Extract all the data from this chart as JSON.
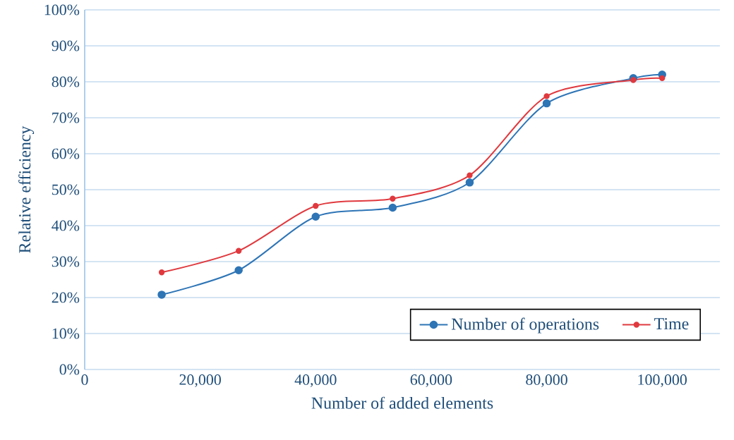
{
  "chart_data": {
    "type": "line",
    "xlabel": "Number of added elements",
    "ylabel": "Relative efficiency",
    "x": [
      13333,
      26667,
      40000,
      53333,
      66667,
      80000,
      95000,
      100000
    ],
    "series": [
      {
        "name": "Number of operations",
        "color": "#2e75b6",
        "values": [
          20.8,
          27.6,
          42.5,
          45,
          52,
          74,
          81,
          82
        ]
      },
      {
        "name": "Time",
        "color": "#e0393e",
        "values": [
          27,
          33,
          45.5,
          47.5,
          54,
          76,
          80.5,
          81
        ]
      }
    ],
    "xlim": [
      0,
      110000
    ],
    "xticks": [
      {
        "value": 0,
        "label": "0"
      },
      {
        "value": 20000,
        "label": "20,000"
      },
      {
        "value": 40000,
        "label": "40,000"
      },
      {
        "value": 60000,
        "label": "60,000"
      },
      {
        "value": 80000,
        "label": "80,000"
      },
      {
        "value": 100000,
        "label": "100,000"
      }
    ],
    "ylim": [
      0,
      100
    ],
    "yticks": [
      {
        "value": 0,
        "label": "0%"
      },
      {
        "value": 10,
        "label": "10%"
      },
      {
        "value": 20,
        "label": "20%"
      },
      {
        "value": 30,
        "label": "30%"
      },
      {
        "value": 40,
        "label": "40%"
      },
      {
        "value": 50,
        "label": "50%"
      },
      {
        "value": 60,
        "label": "60%"
      },
      {
        "value": 70,
        "label": "70%"
      },
      {
        "value": 80,
        "label": "80%"
      },
      {
        "value": 90,
        "label": "90%"
      },
      {
        "value": 100,
        "label": "100%"
      }
    ],
    "grid": "y",
    "legend": "bottom right",
    "marker": "circle",
    "line_style": "solid"
  }
}
